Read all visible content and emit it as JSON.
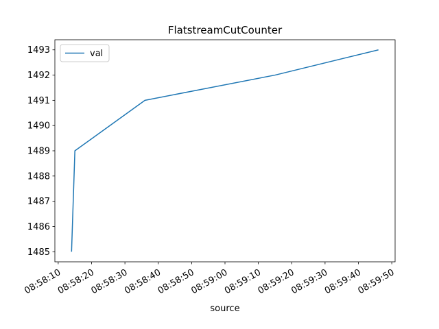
{
  "chart_data": {
    "type": "line",
    "title": "FlatstreamCutCounter",
    "xlabel": "source",
    "ylabel": "",
    "x": [
      "08:58:14",
      "08:58:15",
      "08:58:36",
      "08:59:15",
      "08:59:46"
    ],
    "series": [
      {
        "name": "val",
        "values": [
          1485,
          1489,
          1491,
          1492,
          1493
        ],
        "color": "#1f77b4"
      }
    ],
    "xlim": [
      "08:58:09",
      "08:59:51"
    ],
    "ylim": [
      1484.6,
      1493.4
    ],
    "x_tick_labels": [
      "08:58:10",
      "08:58:20",
      "08:58:30",
      "08:58:40",
      "08:58:50",
      "08:59:00",
      "08:59:10",
      "08:59:20",
      "08:59:30",
      "08:59:40",
      "08:59:50"
    ],
    "y_tick_labels": [
      "1485",
      "1486",
      "1487",
      "1488",
      "1489",
      "1490",
      "1491",
      "1492",
      "1493"
    ],
    "grid": false,
    "legend_position": "top-left"
  }
}
